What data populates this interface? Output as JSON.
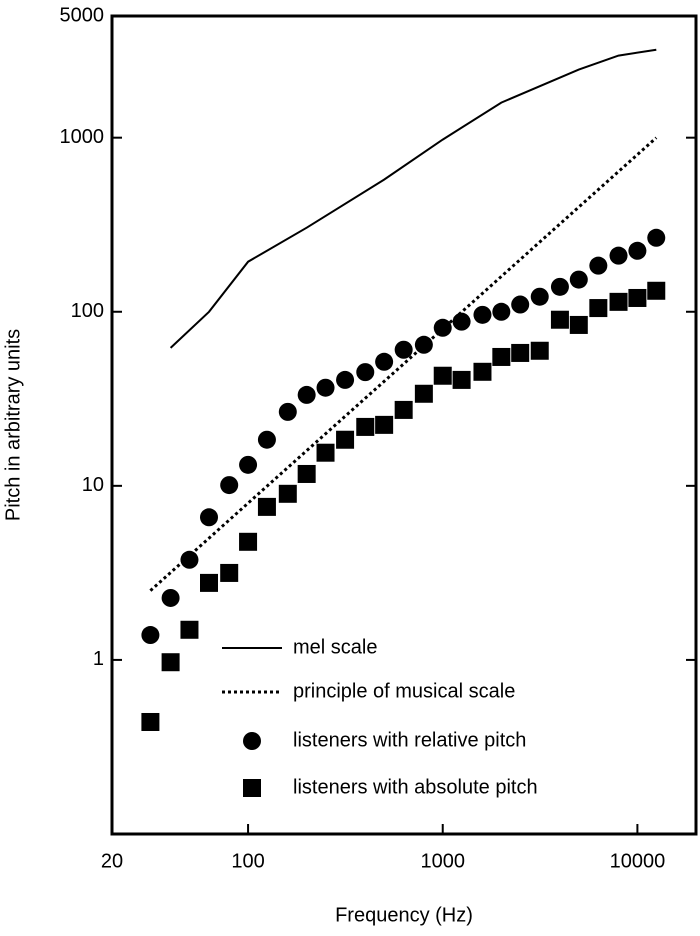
{
  "chart_data": {
    "type": "loglog",
    "xlabel": "Frequency (Hz)",
    "ylabel": "Pitch in arbitrary units",
    "xlim": [
      20,
      20000
    ],
    "ylim": [
      0.1,
      5000
    ],
    "xticks": [
      20,
      100,
      1000,
      10000
    ],
    "yticks": [
      1,
      10,
      100,
      1000,
      5000
    ],
    "log_x": true,
    "log_y": true,
    "legend": "lower right",
    "series": [
      {
        "name": "mel scale",
        "kind": "line",
        "style": "solid",
        "color": "#000000",
        "x": [
          40,
          63,
          100,
          200,
          500,
          1000,
          2000,
          5000,
          8000,
          12500
        ],
        "values": [
          62,
          100,
          194,
          304,
          574,
          975,
          1590,
          2460,
          2960,
          3200
        ]
      },
      {
        "name": "principle of musical scale",
        "kind": "line",
        "style": "dotted",
        "color": "#000000",
        "x": [
          31.5,
          12500
        ],
        "values": [
          2.5,
          1000
        ]
      },
      {
        "name": "listeners with relative pitch",
        "kind": "circle",
        "color": "#000000",
        "x": [
          31.5,
          40,
          50,
          63,
          80,
          100,
          125,
          160,
          200,
          250,
          315,
          400,
          500,
          630,
          800,
          1000,
          1250,
          1600,
          2000,
          2500,
          3150,
          4000,
          5000,
          6300,
          8000,
          10000,
          12500
        ],
        "values": [
          1.39,
          2.27,
          3.76,
          6.6,
          10.1,
          13.2,
          18.4,
          26.6,
          33.3,
          36.6,
          40.6,
          45,
          51.6,
          60.5,
          64.6,
          80.9,
          87.7,
          96,
          100,
          110,
          122,
          139,
          153,
          184,
          210,
          224,
          266
        ]
      },
      {
        "name": "listeners with absolute pitch",
        "kind": "square",
        "color": "#000000",
        "x": [
          31.5,
          40,
          50,
          63,
          80,
          100,
          125,
          160,
          200,
          250,
          315,
          400,
          500,
          630,
          800,
          1000,
          1250,
          1600,
          2000,
          2500,
          3150,
          4000,
          5000,
          6300,
          8000,
          10000,
          12500
        ],
        "values": [
          0.44,
          0.97,
          1.49,
          2.77,
          3.16,
          4.77,
          7.57,
          9.0,
          11.7,
          15.5,
          18.4,
          21.8,
          22.4,
          27.3,
          33.8,
          42.9,
          40.6,
          45.2,
          55,
          58,
          59.7,
          90,
          84,
          105,
          114,
          120,
          132
        ]
      }
    ]
  }
}
